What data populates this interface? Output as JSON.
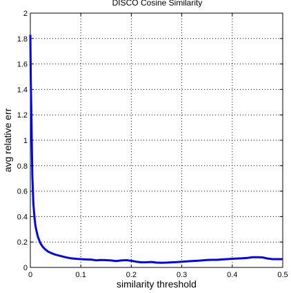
{
  "chart_data": {
    "type": "line",
    "title": "DISCO Cosine Similarity",
    "xlabel": "similarity threshold",
    "ylabel": "avg relative err",
    "xlim": [
      0,
      0.5
    ],
    "ylim": [
      0,
      2
    ],
    "xticks": [
      "0",
      "0.1",
      "0.2",
      "0.3",
      "0.4",
      "0.5"
    ],
    "yticks": [
      "0",
      "0.2",
      "0.4",
      "0.6",
      "0.8",
      "1",
      "1.2",
      "1.4",
      "1.6",
      "1.8",
      "2"
    ],
    "grid": true,
    "series": [
      {
        "color": "#0000ff",
        "x": [
          0,
          0.001,
          0.002,
          0.003,
          0.004,
          0.005,
          0.006,
          0.008,
          0.01,
          0.012,
          0.015,
          0.018,
          0.02,
          0.025,
          0.03,
          0.035,
          0.04,
          0.05,
          0.06,
          0.07,
          0.08,
          0.09,
          0.1,
          0.11,
          0.12,
          0.13,
          0.14,
          0.15,
          0.16,
          0.17,
          0.18,
          0.19,
          0.2,
          0.21,
          0.22,
          0.23,
          0.24,
          0.25,
          0.26,
          0.27,
          0.28,
          0.29,
          0.3,
          0.31,
          0.32,
          0.33,
          0.34,
          0.35,
          0.36,
          0.37,
          0.38,
          0.39,
          0.4,
          0.41,
          0.42,
          0.43,
          0.44,
          0.45,
          0.46,
          0.47,
          0.48,
          0.49,
          0.5
        ],
        "y": [
          1.83,
          1.45,
          1.2,
          0.95,
          0.72,
          0.6,
          0.5,
          0.4,
          0.33,
          0.29,
          0.24,
          0.21,
          0.19,
          0.16,
          0.14,
          0.125,
          0.115,
          0.1,
          0.09,
          0.08,
          0.072,
          0.068,
          0.065,
          0.063,
          0.062,
          0.056,
          0.058,
          0.057,
          0.055,
          0.05,
          0.055,
          0.057,
          0.052,
          0.045,
          0.04,
          0.041,
          0.043,
          0.038,
          0.037,
          0.038,
          0.04,
          0.042,
          0.045,
          0.048,
          0.05,
          0.052,
          0.055,
          0.058,
          0.06,
          0.06,
          0.063,
          0.065,
          0.068,
          0.07,
          0.072,
          0.075,
          0.08,
          0.08,
          0.079,
          0.07,
          0.065,
          0.065,
          0.065
        ]
      }
    ]
  }
}
